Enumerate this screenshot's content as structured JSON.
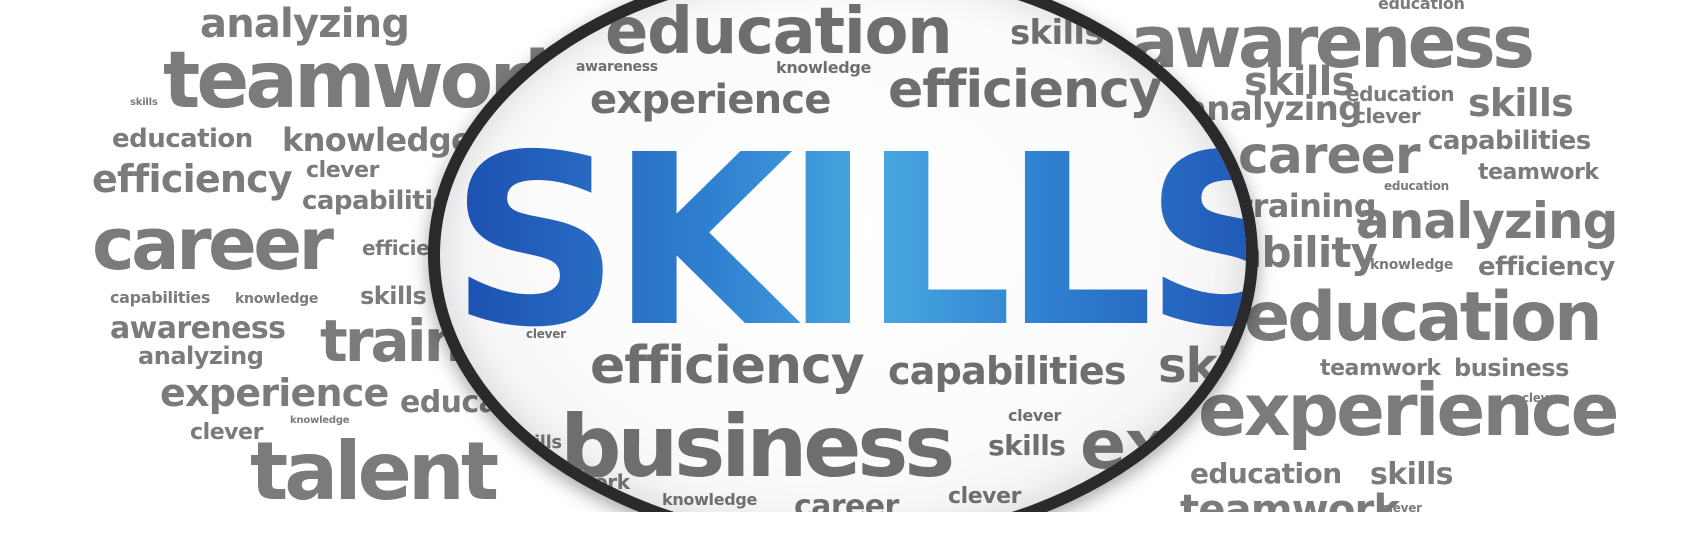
{
  "image": {
    "headline": "SKILLS",
    "background_color": "#ffffff",
    "word_color": "#7b7b7d",
    "headline_gradient": [
      "#1c4fb0",
      "#48a8e0"
    ],
    "lens_rim_color": "#2a2a2c",
    "outer_words": [
      "analyzing",
      "teamwork",
      "skills",
      "education",
      "knowledge",
      "efficiency",
      "clever",
      "capabilities",
      "career",
      "efficiency",
      "capabilities",
      "knowledge",
      "skills",
      "awareness",
      "analyzing",
      "training",
      "clever",
      "experience",
      "education",
      "clever",
      "knowledge",
      "talent",
      "awareness",
      "education",
      "skills",
      "education",
      "clever",
      "skills",
      "analyzing",
      "capabilities",
      "career",
      "teamwork",
      "training",
      "education",
      "analyzing",
      "ability",
      "knowledge",
      "efficiency",
      "education",
      "teamwork",
      "business",
      "clever",
      "experience",
      "education",
      "skills",
      "clever",
      "teamwork"
    ],
    "lens_words": [
      "education",
      "skills",
      "awareness",
      "knowledge",
      "experience",
      "efficiency",
      "clever",
      "efficiency",
      "capabilities",
      "skills",
      "business",
      "clever",
      "skills",
      "experience",
      "skills",
      "teamwork",
      "knowledge",
      "career",
      "clever"
    ]
  }
}
